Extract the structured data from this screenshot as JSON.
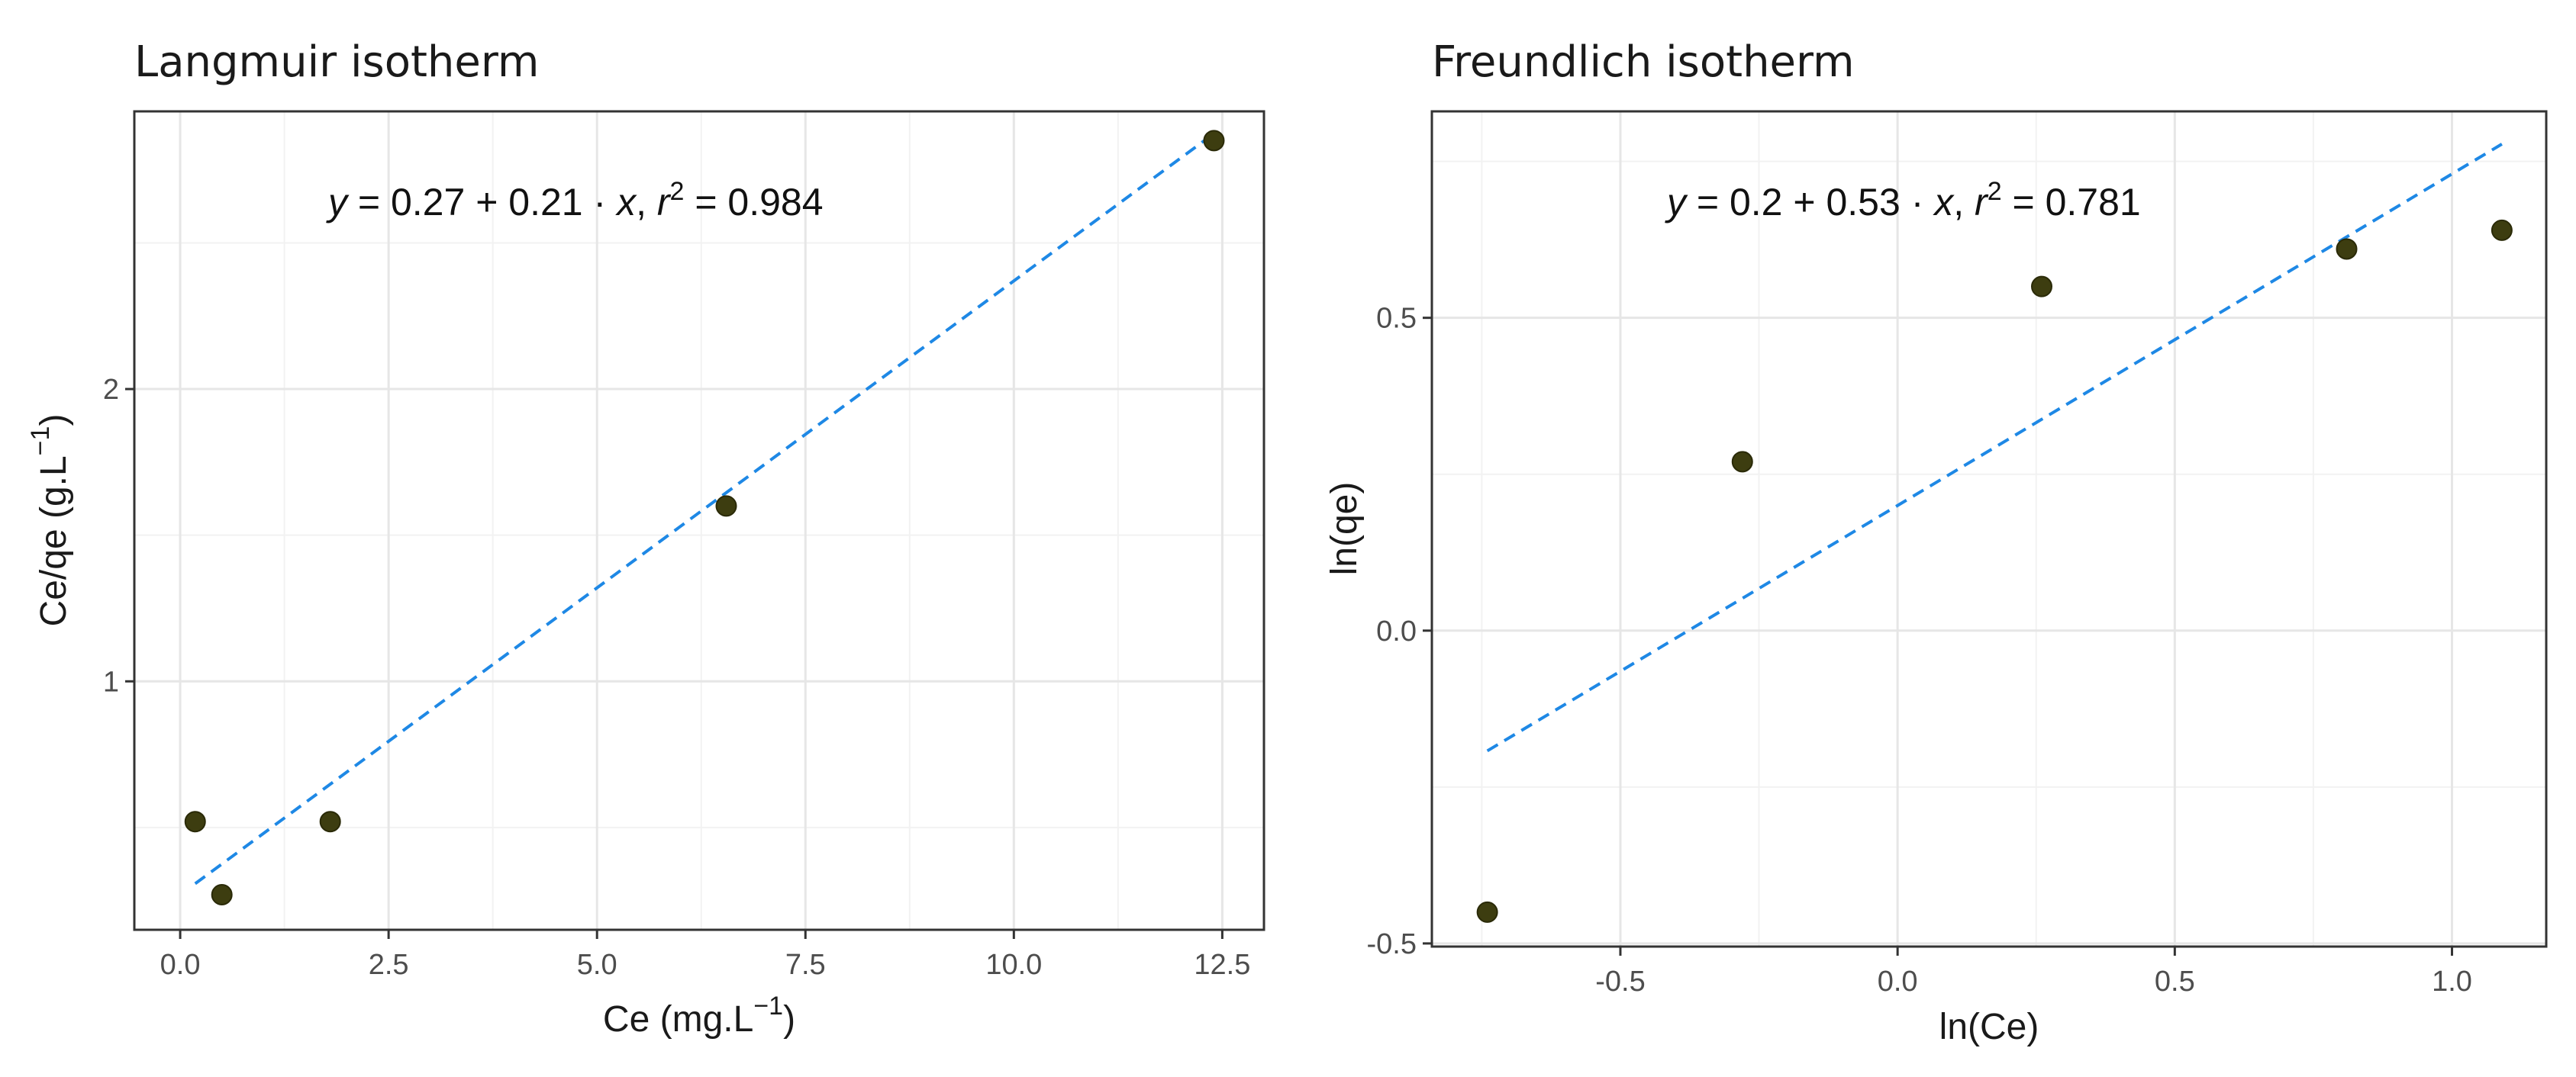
{
  "colors": {
    "points": "#3d3d10",
    "fit_line": "#1e88e5",
    "grid": "#e6e6e6",
    "frame": "#333333"
  },
  "chart_data": [
    {
      "type": "scatter",
      "title": "Langmuir isotherm",
      "xlabel_main": "Ce (mg.L",
      "xlabel_sup": "−1",
      "xlabel_close": ")",
      "ylabel_main": "Ce/qe (g.L",
      "ylabel_sup": "−1",
      "ylabel_close": ")",
      "xlim": [
        -0.55,
        13.0
      ],
      "ylim": [
        0.15,
        2.95
      ],
      "x_ticks": [
        0,
        2.5,
        5,
        7.5,
        10,
        12.5
      ],
      "x_tick_labels": [
        "0.0",
        "2.5",
        "5.0",
        "7.5",
        "10.0",
        "12.5"
      ],
      "y_ticks": [
        1,
        2
      ],
      "y_tick_labels": [
        "1",
        "2"
      ],
      "grid": true,
      "points": {
        "x": [
          0.18,
          0.5,
          1.8,
          6.55,
          12.4
        ],
        "y": [
          0.52,
          0.27,
          0.52,
          1.6,
          2.85
        ]
      },
      "fit": {
        "intercept": 0.27,
        "slope": 0.21,
        "x_range": [
          0.18,
          12.4
        ],
        "style": "dashed"
      },
      "equation": {
        "lhs": "y",
        "eq": " = ",
        "intercept": "0.27",
        "plus": " + ",
        "slope": "0.21",
        "dot": " · ",
        "x": "x",
        "comma": ",  ",
        "r": "r",
        "r_sup": "2",
        "r_eq": " = 0.984"
      }
    },
    {
      "type": "scatter",
      "title": "Freundlich isotherm",
      "xlabel": "ln(Ce)",
      "ylabel": "ln(qe)",
      "xlim": [
        -0.84,
        1.17
      ],
      "ylim": [
        -0.505,
        0.83
      ],
      "x_ticks": [
        -0.5,
        0,
        0.5,
        1
      ],
      "x_tick_labels": [
        "-0.5",
        "0.0",
        "0.5",
        "1.0"
      ],
      "y_ticks": [
        -0.5,
        0,
        0.5
      ],
      "y_tick_labels": [
        "-0.5",
        "0.0",
        "0.5"
      ],
      "grid": true,
      "points": {
        "x": [
          -0.74,
          -0.28,
          0.26,
          0.81,
          1.09
        ],
        "y": [
          -0.45,
          0.27,
          0.55,
          0.61,
          0.64
        ]
      },
      "fit": {
        "intercept": 0.2,
        "slope": 0.53,
        "x_range": [
          -0.74,
          1.09
        ],
        "style": "dashed"
      },
      "equation": {
        "lhs": "y",
        "eq": " = ",
        "intercept": "0.2",
        "plus": " + ",
        "slope": "0.53",
        "dot": " · ",
        "x": "x",
        "comma": ",  ",
        "r": "r",
        "r_sup": "2",
        "r_eq": " = 0.781"
      }
    }
  ]
}
